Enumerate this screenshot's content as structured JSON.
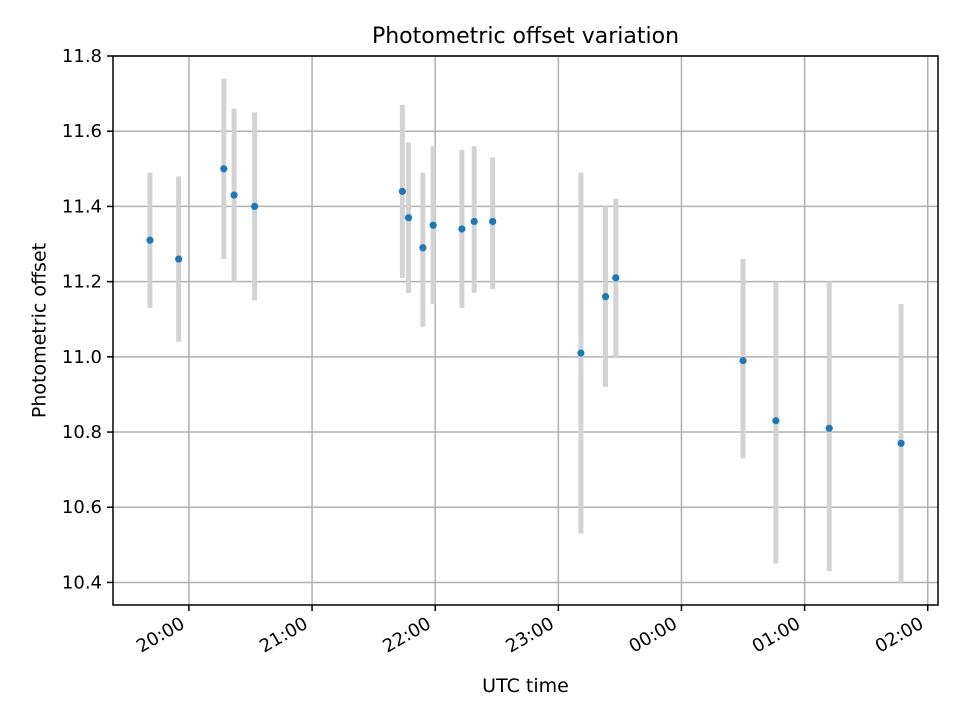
{
  "chart_data": {
    "type": "scatter",
    "title": "Photometric offset variation",
    "xlabel": "UTC time",
    "ylabel": "Photometric offset",
    "grid": true,
    "xlim": [
      "19:23",
      "02:05"
    ],
    "ylim": [
      10.34,
      11.8
    ],
    "x_ticks": [
      "20:00",
      "21:00",
      "22:00",
      "23:00",
      "00:00",
      "01:00",
      "02:00"
    ],
    "y_ticks": [
      "10.4",
      "10.6",
      "10.8",
      "11.0",
      "11.2",
      "11.4",
      "11.6",
      "11.8"
    ],
    "point_color": "#1f77b4",
    "errorbar_color": "#d3d3d3",
    "grid_color": "#b0b0b0",
    "points": [
      {
        "x": "19:41",
        "y": 11.31,
        "low": 11.13,
        "high": 11.49
      },
      {
        "x": "19:55",
        "y": 11.26,
        "low": 11.04,
        "high": 11.48
      },
      {
        "x": "20:17",
        "y": 11.5,
        "low": 11.26,
        "high": 11.74
      },
      {
        "x": "20:22",
        "y": 11.43,
        "low": 11.2,
        "high": 11.66
      },
      {
        "x": "20:32",
        "y": 11.4,
        "low": 11.15,
        "high": 11.65
      },
      {
        "x": "21:44",
        "y": 11.44,
        "low": 11.21,
        "high": 11.67
      },
      {
        "x": "21:47",
        "y": 11.37,
        "low": 11.17,
        "high": 11.57
      },
      {
        "x": "21:54",
        "y": 11.29,
        "low": 11.08,
        "high": 11.49
      },
      {
        "x": "21:59",
        "y": 11.35,
        "low": 11.14,
        "high": 11.56
      },
      {
        "x": "22:13",
        "y": 11.34,
        "low": 11.13,
        "high": 11.55
      },
      {
        "x": "22:19",
        "y": 11.36,
        "low": 11.17,
        "high": 11.56
      },
      {
        "x": "22:28",
        "y": 11.36,
        "low": 11.18,
        "high": 11.53
      },
      {
        "x": "23:11",
        "y": 11.01,
        "low": 10.53,
        "high": 11.49
      },
      {
        "x": "23:23",
        "y": 11.16,
        "low": 10.92,
        "high": 11.4
      },
      {
        "x": "23:28",
        "y": 11.21,
        "low": 11.0,
        "high": 11.42
      },
      {
        "x": "00:30",
        "y": 10.99,
        "low": 10.73,
        "high": 11.26
      },
      {
        "x": "00:46",
        "y": 10.83,
        "low": 10.45,
        "high": 11.2
      },
      {
        "x": "01:12",
        "y": 10.81,
        "low": 10.43,
        "high": 11.2
      },
      {
        "x": "01:47",
        "y": 10.77,
        "low": 10.4,
        "high": 11.14
      }
    ]
  }
}
